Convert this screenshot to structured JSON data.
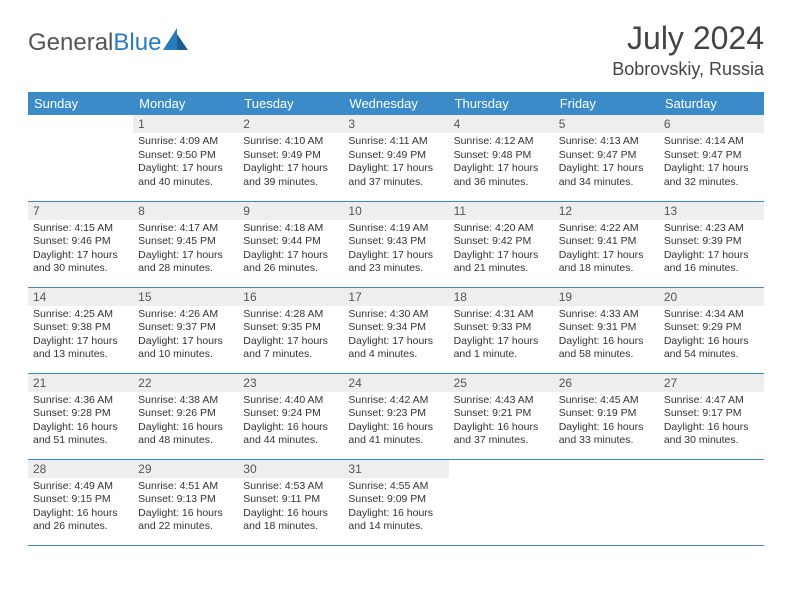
{
  "logo": {
    "part1": "General",
    "part2": "Blue"
  },
  "title": "July 2024",
  "location": "Bobrovskiy, Russia",
  "colors": {
    "header_bg": "#3b8bc9",
    "header_text": "#ffffff",
    "daynum_bg": "#eeeeee",
    "border": "#3b8bc9",
    "logo_blue": "#2b7bbf"
  },
  "weekdays": [
    "Sunday",
    "Monday",
    "Tuesday",
    "Wednesday",
    "Thursday",
    "Friday",
    "Saturday"
  ],
  "weeks": [
    [
      null,
      {
        "n": "1",
        "sr": "4:09 AM",
        "ss": "9:50 PM",
        "dl": "17 hours and 40 minutes."
      },
      {
        "n": "2",
        "sr": "4:10 AM",
        "ss": "9:49 PM",
        "dl": "17 hours and 39 minutes."
      },
      {
        "n": "3",
        "sr": "4:11 AM",
        "ss": "9:49 PM",
        "dl": "17 hours and 37 minutes."
      },
      {
        "n": "4",
        "sr": "4:12 AM",
        "ss": "9:48 PM",
        "dl": "17 hours and 36 minutes."
      },
      {
        "n": "5",
        "sr": "4:13 AM",
        "ss": "9:47 PM",
        "dl": "17 hours and 34 minutes."
      },
      {
        "n": "6",
        "sr": "4:14 AM",
        "ss": "9:47 PM",
        "dl": "17 hours and 32 minutes."
      }
    ],
    [
      {
        "n": "7",
        "sr": "4:15 AM",
        "ss": "9:46 PM",
        "dl": "17 hours and 30 minutes."
      },
      {
        "n": "8",
        "sr": "4:17 AM",
        "ss": "9:45 PM",
        "dl": "17 hours and 28 minutes."
      },
      {
        "n": "9",
        "sr": "4:18 AM",
        "ss": "9:44 PM",
        "dl": "17 hours and 26 minutes."
      },
      {
        "n": "10",
        "sr": "4:19 AM",
        "ss": "9:43 PM",
        "dl": "17 hours and 23 minutes."
      },
      {
        "n": "11",
        "sr": "4:20 AM",
        "ss": "9:42 PM",
        "dl": "17 hours and 21 minutes."
      },
      {
        "n": "12",
        "sr": "4:22 AM",
        "ss": "9:41 PM",
        "dl": "17 hours and 18 minutes."
      },
      {
        "n": "13",
        "sr": "4:23 AM",
        "ss": "9:39 PM",
        "dl": "17 hours and 16 minutes."
      }
    ],
    [
      {
        "n": "14",
        "sr": "4:25 AM",
        "ss": "9:38 PM",
        "dl": "17 hours and 13 minutes."
      },
      {
        "n": "15",
        "sr": "4:26 AM",
        "ss": "9:37 PM",
        "dl": "17 hours and 10 minutes."
      },
      {
        "n": "16",
        "sr": "4:28 AM",
        "ss": "9:35 PM",
        "dl": "17 hours and 7 minutes."
      },
      {
        "n": "17",
        "sr": "4:30 AM",
        "ss": "9:34 PM",
        "dl": "17 hours and 4 minutes."
      },
      {
        "n": "18",
        "sr": "4:31 AM",
        "ss": "9:33 PM",
        "dl": "17 hours and 1 minute."
      },
      {
        "n": "19",
        "sr": "4:33 AM",
        "ss": "9:31 PM",
        "dl": "16 hours and 58 minutes."
      },
      {
        "n": "20",
        "sr": "4:34 AM",
        "ss": "9:29 PM",
        "dl": "16 hours and 54 minutes."
      }
    ],
    [
      {
        "n": "21",
        "sr": "4:36 AM",
        "ss": "9:28 PM",
        "dl": "16 hours and 51 minutes."
      },
      {
        "n": "22",
        "sr": "4:38 AM",
        "ss": "9:26 PM",
        "dl": "16 hours and 48 minutes."
      },
      {
        "n": "23",
        "sr": "4:40 AM",
        "ss": "9:24 PM",
        "dl": "16 hours and 44 minutes."
      },
      {
        "n": "24",
        "sr": "4:42 AM",
        "ss": "9:23 PM",
        "dl": "16 hours and 41 minutes."
      },
      {
        "n": "25",
        "sr": "4:43 AM",
        "ss": "9:21 PM",
        "dl": "16 hours and 37 minutes."
      },
      {
        "n": "26",
        "sr": "4:45 AM",
        "ss": "9:19 PM",
        "dl": "16 hours and 33 minutes."
      },
      {
        "n": "27",
        "sr": "4:47 AM",
        "ss": "9:17 PM",
        "dl": "16 hours and 30 minutes."
      }
    ],
    [
      {
        "n": "28",
        "sr": "4:49 AM",
        "ss": "9:15 PM",
        "dl": "16 hours and 26 minutes."
      },
      {
        "n": "29",
        "sr": "4:51 AM",
        "ss": "9:13 PM",
        "dl": "16 hours and 22 minutes."
      },
      {
        "n": "30",
        "sr": "4:53 AM",
        "ss": "9:11 PM",
        "dl": "16 hours and 18 minutes."
      },
      {
        "n": "31",
        "sr": "4:55 AM",
        "ss": "9:09 PM",
        "dl": "16 hours and 14 minutes."
      },
      null,
      null,
      null
    ]
  ],
  "labels": {
    "sunrise": "Sunrise: ",
    "sunset": "Sunset: ",
    "daylight": "Daylight: "
  }
}
